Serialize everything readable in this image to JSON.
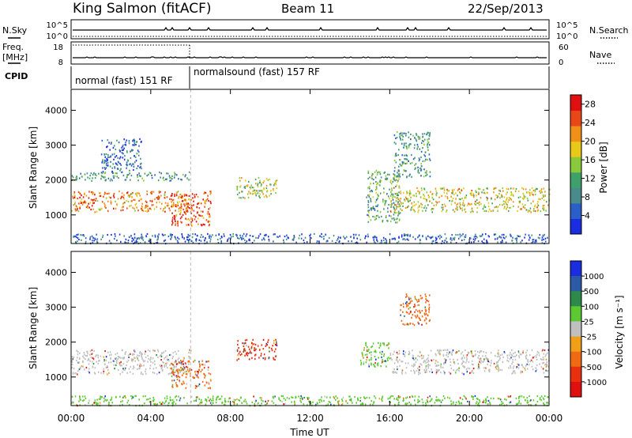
{
  "header": {
    "station": "King Salmon (fitACF)",
    "beam": "Beam 11",
    "date": "22/Sep/2013"
  },
  "noise_panel": {
    "left_label": "N.Sky",
    "right_label": "N.Search",
    "left_ticks": [
      "10^5",
      "10^0"
    ],
    "right_ticks": [
      "10^5",
      "10^0"
    ]
  },
  "freq_panel": {
    "left_label_1": "Freq.",
    "left_label_2": "[MHz]",
    "right_label": "Nave",
    "left_ticks": [
      "18",
      "8"
    ],
    "right_ticks": [
      "60",
      "0"
    ]
  },
  "cpid_panel": {
    "label": "CPID",
    "modes": [
      {
        "name": "normal (fast) 151 RF",
        "start_hour": 0,
        "end_hour": 6
      },
      {
        "name": "normalsound (fast) 157 RF",
        "start_hour": 6,
        "end_hour": 24
      }
    ]
  },
  "chart_data": [
    {
      "type": "heatmap",
      "name": "power",
      "ylabel": "Slant Range [km]",
      "xlabel": "",
      "x_range_hours": [
        0,
        24
      ],
      "ylim": [
        180,
        4600
      ],
      "x_ticks": [
        "00:00",
        "04:00",
        "08:00",
        "12:00",
        "16:00",
        "20:00",
        "00:00"
      ],
      "y_ticks": [
        1000,
        2000,
        3000,
        4000
      ],
      "colorbar": {
        "label": "Power [dB]",
        "ticks": [
          4,
          8,
          12,
          16,
          20,
          24,
          28
        ],
        "range": [
          0,
          30
        ],
        "colors": [
          "#1a2ee0",
          "#2b5fc8",
          "#4a8a8a",
          "#3fa06a",
          "#8ac83c",
          "#e8c818",
          "#f09018",
          "#e84818",
          "#e01010"
        ]
      },
      "regions": [
        {
          "t0": 0.0,
          "t1": 6.0,
          "r0": 1100,
          "r1": 1700,
          "level": 22
        },
        {
          "t0": 0.0,
          "t1": 6.0,
          "r0": 2000,
          "r1": 2250,
          "level": 10
        },
        {
          "t0": 1.5,
          "t1": 3.5,
          "r0": 2250,
          "r1": 3200,
          "level": 6
        },
        {
          "t0": 5.0,
          "t1": 7.0,
          "r0": 700,
          "r1": 1700,
          "level": 24
        },
        {
          "t0": 8.3,
          "t1": 10.3,
          "r0": 1500,
          "r1": 2100,
          "level": 16
        },
        {
          "t0": 14.8,
          "t1": 16.5,
          "r0": 800,
          "r1": 2300,
          "level": 12
        },
        {
          "t0": 16.0,
          "t1": 24.0,
          "r0": 1100,
          "r1": 1800,
          "level": 18
        },
        {
          "t0": 16.2,
          "t1": 18.0,
          "r0": 2100,
          "r1": 3400,
          "level": 10
        },
        {
          "t0": 0.0,
          "t1": 24.0,
          "r0": 200,
          "r1": 480,
          "level": 5
        }
      ]
    },
    {
      "type": "heatmap",
      "name": "velocity",
      "ylabel": "Slant Range [km]",
      "xlabel": "Time UT",
      "x_range_hours": [
        0,
        24
      ],
      "ylim": [
        180,
        4600
      ],
      "x_ticks": [
        "00:00",
        "04:00",
        "08:00",
        "12:00",
        "16:00",
        "20:00",
        "00:00"
      ],
      "y_ticks": [
        1000,
        2000,
        3000,
        4000
      ],
      "colorbar": {
        "label": "Velocity [m s⁻¹]",
        "ticks": [
          "1000",
          "500",
          "100",
          "25",
          "-25",
          "-100",
          "-500",
          "-1000"
        ],
        "colors": [
          "#1a2ee0",
          "#2d5aa8",
          "#2e8a4a",
          "#5cc832",
          "#c0c0c0",
          "#f0a018",
          "#f06a14",
          "#e83010",
          "#e01010"
        ]
      },
      "regions": [
        {
          "t0": 0.0,
          "t1": 6.0,
          "r0": 1100,
          "r1": 1800,
          "level": "25"
        },
        {
          "t0": 5.0,
          "t1": 7.0,
          "r0": 700,
          "r1": 1500,
          "level": "-100"
        },
        {
          "t0": 8.3,
          "t1": 10.3,
          "r0": 1500,
          "r1": 2100,
          "level": "-500"
        },
        {
          "t0": 14.5,
          "t1": 16.0,
          "r0": 1300,
          "r1": 2000,
          "level": "100"
        },
        {
          "t0": 16.0,
          "t1": 24.0,
          "r0": 1100,
          "r1": 1800,
          "level": "25"
        },
        {
          "t0": 16.5,
          "t1": 18.0,
          "r0": 2500,
          "r1": 3400,
          "level": "-100"
        },
        {
          "t0": 0.0,
          "t1": 24.0,
          "r0": 200,
          "r1": 480,
          "level": "100"
        }
      ]
    }
  ]
}
